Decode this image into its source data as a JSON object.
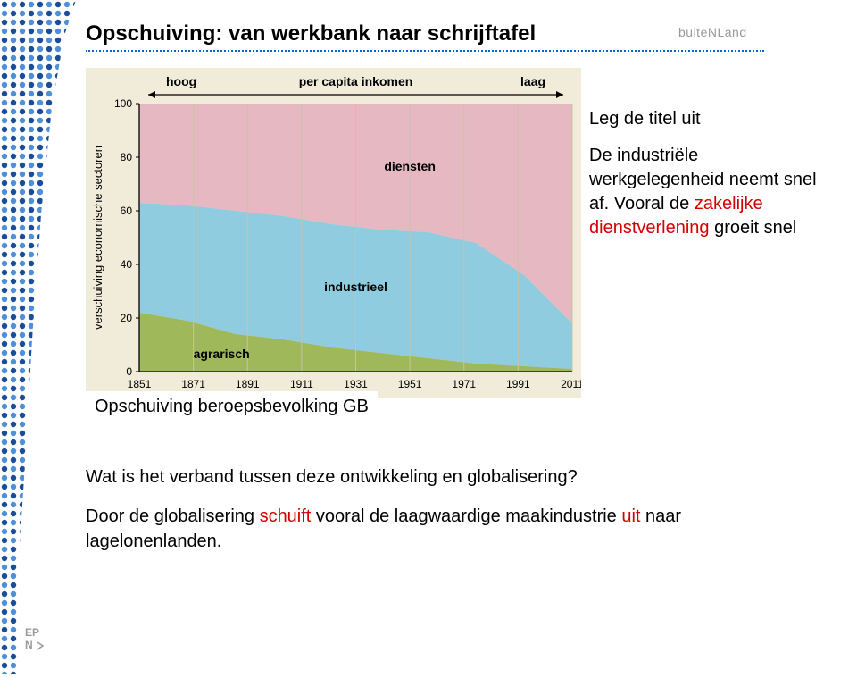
{
  "brand": "buiteNLand",
  "title": "Opschuiving: van werkbank naar schrijftafel",
  "right_notes": {
    "line1": "Leg de titel uit",
    "line2a": "De industriële werkgelegenheid neemt snel af. Vooral de ",
    "line2_red": "zakelijke dienstverlening",
    "line2b": " groeit snel"
  },
  "caption": "Opschuiving beroepsbevolking GB",
  "body": {
    "q": "Wat is het verband tussen deze ontwikkeling en globalisering?",
    "a_pre": "Door de globalisering ",
    "a_red": "schuift",
    "a_mid": " vooral de laagwaardige maakindustrie ",
    "a_red2": "uit",
    "a_post": " naar lagelonenlanden."
  },
  "chart": {
    "type": "area",
    "background_color": "#f0ecd9",
    "plot_bg": "#f0ecd9",
    "axis_color": "#000000",
    "grid_color": "#c8c3a8",
    "yaxis_label": "verschuiving economische sectoren",
    "xaxis_top_left": "hoog",
    "xaxis_top_mid": "per capita inkomen",
    "xaxis_top_right": "laag",
    "ylim": [
      0,
      100
    ],
    "yticks": [
      0,
      20,
      40,
      60,
      80,
      100
    ],
    "xticks": [
      1851,
      1871,
      1891,
      1911,
      1931,
      1951,
      1971,
      1991,
      2011
    ],
    "series": [
      {
        "name": "agrarisch",
        "color": "#9fb85a",
        "label_x": 1871,
        "label_y": 5,
        "values": [
          22,
          19,
          14,
          12,
          9,
          7,
          5,
          3,
          2,
          1
        ]
      },
      {
        "name": "industrieel",
        "color": "#8fcce0",
        "label_x": 1931,
        "label_y": 30,
        "values_top": [
          63,
          62,
          60,
          58,
          55,
          53,
          52,
          48,
          36,
          18
        ]
      },
      {
        "name": "diensten",
        "color": "#e6b8c2",
        "label_x": 1951,
        "label_y": 75
      }
    ],
    "fontsize_axis": 13,
    "fontsize_tick": 12,
    "fontsize_label": 14
  },
  "dots": {
    "dark": "#1a4d99",
    "light": "#4d8fd9"
  }
}
